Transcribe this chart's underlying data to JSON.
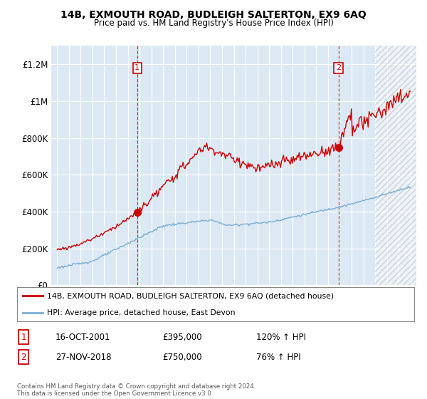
{
  "title1": "14B, EXMOUTH ROAD, BUDLEIGH SALTERTON, EX9 6AQ",
  "title2": "Price paid vs. HM Land Registry's House Price Index (HPI)",
  "bg_color": "#dce9f5",
  "red_color": "#cc0000",
  "blue_color": "#7aadd4",
  "legend_label_red": "14B, EXMOUTH ROAD, BUDLEIGH SALTERTON, EX9 6AQ (detached house)",
  "legend_label_blue": "HPI: Average price, detached house, East Devon",
  "transaction1_date": "16-OCT-2001",
  "transaction1_price": "£395,000",
  "transaction1_hpi": "120% ↑ HPI",
  "transaction2_date": "27-NOV-2018",
  "transaction2_price": "£750,000",
  "transaction2_hpi": "76% ↑ HPI",
  "footer": "Contains HM Land Registry data © Crown copyright and database right 2024.\nThis data is licensed under the Open Government Licence v3.0.",
  "ylim_min": 0,
  "ylim_max": 1300000,
  "yticks": [
    0,
    200000,
    400000,
    600000,
    800000,
    1000000,
    1200000
  ],
  "ytick_labels": [
    "£0",
    "£200K",
    "£400K",
    "£600K",
    "£800K",
    "£1M",
    "£1.2M"
  ],
  "sale1_year": 2001.8,
  "sale1_price": 395000,
  "sale2_year": 2018.9,
  "sale2_price": 750000
}
